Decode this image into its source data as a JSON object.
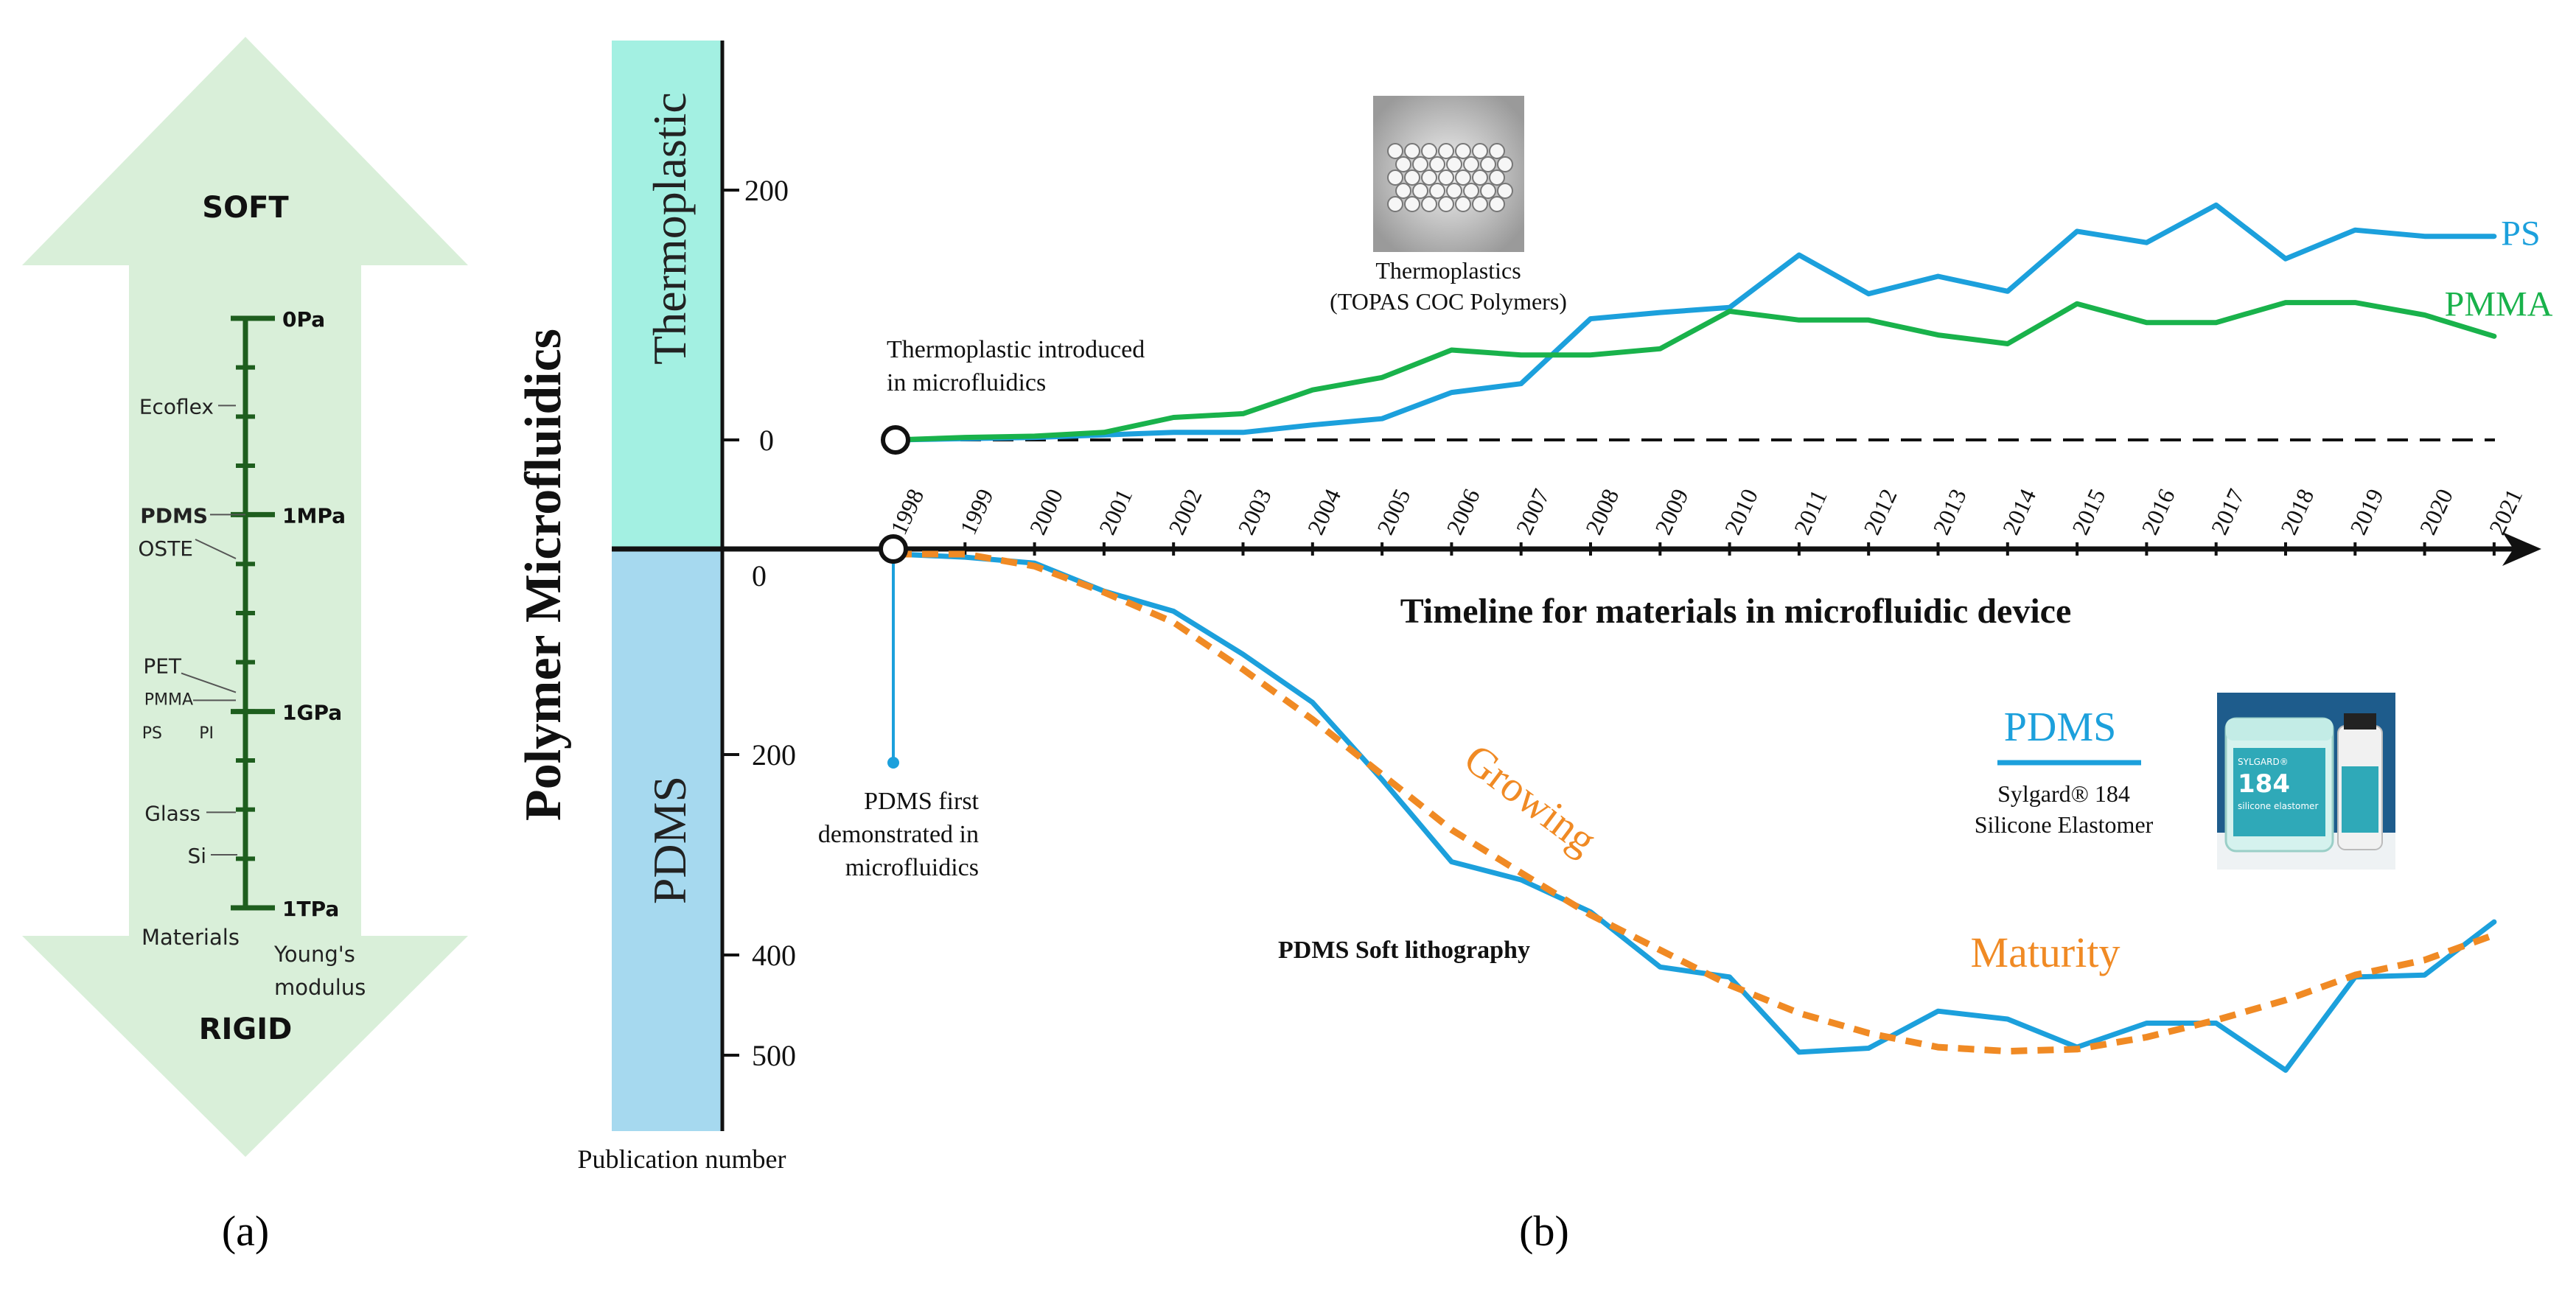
{
  "panel_a": {
    "top_label": "SOFT",
    "bottom_label": "RIGID",
    "caption": "(a)",
    "axis_title_left": "Materials",
    "axis_title_right_1": "Young's",
    "axis_title_right_2": "modulus",
    "scale_ticks": [
      {
        "label": "0Pa",
        "pos": 0.0
      },
      {
        "label": "1MPa",
        "pos": 0.333
      },
      {
        "label": "1GPa",
        "pos": 0.667
      },
      {
        "label": "1TPa",
        "pos": 1.0
      }
    ],
    "materials": [
      {
        "label": "Ecoflex",
        "pos": 0.148
      },
      {
        "label": "PDMS",
        "pos": 0.333
      },
      {
        "label": "OSTE",
        "pos": 0.375
      },
      {
        "label": "PET",
        "pos": 0.602
      },
      {
        "label": "PMMA",
        "pos": 0.648
      },
      {
        "label": "PS",
        "pos": 0.685
      },
      {
        "label": "PI",
        "pos": 0.685
      },
      {
        "label": "Glass",
        "pos": 0.838
      },
      {
        "label": "Si",
        "pos": 0.91
      }
    ],
    "colors": {
      "arrow": "#d9efd9",
      "scale": "#1e5e1e"
    }
  },
  "panel_b": {
    "caption": "(b)",
    "y_title": "Polymer Microfluidics",
    "x_title": "Timeline for materials in microfluidic device",
    "y_axis_caption": "Publication number",
    "band_top": "Thermoplastic",
    "band_bottom": "PDMS",
    "annotations": {
      "thermo_intro_1": "Thermoplastic introduced",
      "thermo_intro_2": "in microfluidics",
      "pdms_first_1": "PDMS first",
      "pdms_first_2": "demonstrated in",
      "pdms_first_3": "microfluidics",
      "soft_litho": "PDMS Soft lithography",
      "growing": "Growing",
      "maturity": "Maturity",
      "thermo_img_1": "Thermoplastics",
      "thermo_img_2": "(TOPAS COC Polymers)",
      "pdms_legend": "PDMS",
      "sylgard_1": "Sylgard® 184",
      "sylgard_2": "Silicone Elastomer",
      "jar_brand": "SYLGARD®",
      "jar_number": "184",
      "jar_name": "silicone elastomer"
    },
    "colors": {
      "ps": "#1ca0dc",
      "pmma": "#19b24b",
      "pdms": "#1ca0dc",
      "trend": "#f08a24",
      "band_top": "#a3f0e2",
      "band_bottom": "#a6d9ef"
    }
  },
  "chart_data": {
    "type": "line",
    "title": "Timeline for materials in microfluidic device",
    "x": [
      1998,
      1999,
      2000,
      2001,
      2002,
      2003,
      2004,
      2005,
      2006,
      2007,
      2008,
      2009,
      2010,
      2011,
      2012,
      2013,
      2014,
      2015,
      2016,
      2017,
      2018,
      2019,
      2020,
      2021
    ],
    "upper_yticks": [
      0,
      200
    ],
    "lower_yticks": [
      0,
      200,
      400,
      500
    ],
    "upper_ylim": [
      0,
      200
    ],
    "lower_ylim": [
      0,
      500
    ],
    "series": [
      {
        "name": "PS",
        "panel": "upper",
        "values": [
          0,
          1,
          2,
          4,
          6,
          6,
          12,
          17,
          38,
          45,
          97,
          102,
          106,
          148,
          117,
          131,
          119,
          167,
          158,
          188,
          145,
          168,
          163,
          163
        ]
      },
      {
        "name": "PMMA",
        "panel": "upper",
        "values": [
          0,
          2,
          3,
          6,
          18,
          21,
          40,
          50,
          72,
          68,
          68,
          73,
          103,
          96,
          96,
          84,
          77,
          109,
          94,
          94,
          110,
          110,
          100,
          83
        ]
      },
      {
        "name": "PDMS",
        "panel": "lower",
        "values": [
          0,
          3,
          9,
          37,
          57,
          100,
          148,
          225,
          307,
          325,
          357,
          412,
          422,
          497,
          493,
          456,
          464,
          492,
          468,
          468,
          515,
          422,
          420,
          367
        ]
      },
      {
        "name": "",
        "panel": "lower",
        "style": "dashed",
        "values": [
          0,
          0,
          12,
          38,
          68,
          115,
          165,
          220,
          275,
          318,
          360,
          395,
          430,
          458,
          478,
          492,
          496,
          494,
          482,
          465,
          445,
          420,
          405,
          380
        ]
      }
    ]
  }
}
